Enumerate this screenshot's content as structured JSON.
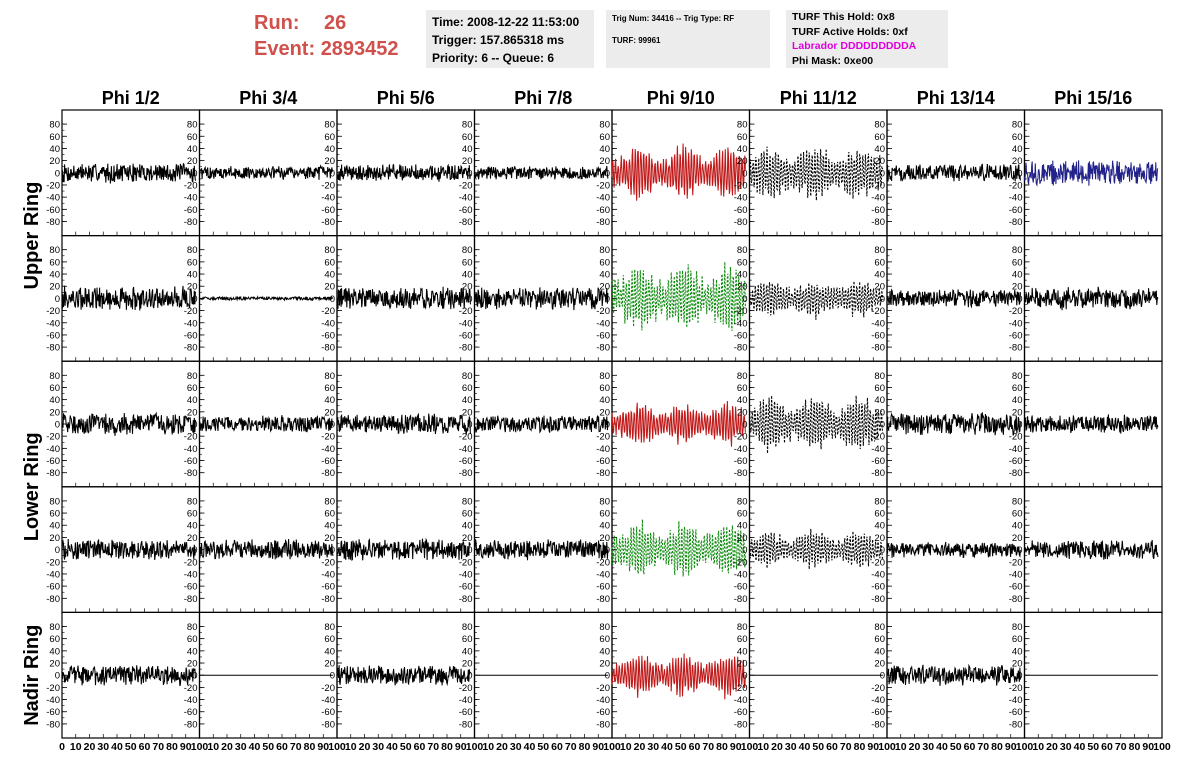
{
  "header": {
    "run_label": "Run:",
    "run_value": "26",
    "event_label": "Event:",
    "event_value": "2893452",
    "accent_color": "#d0504c"
  },
  "info_time": {
    "time": "Time: 2008-12-22 11:53:00",
    "trigger": "Trigger: 157.865318 ms",
    "priority_queue": "Priority: 6 -- Queue: 6"
  },
  "info_trig": {
    "trig_line": "Trig Num: 34416 -- Trig Type: RF",
    "turf_line": "TURF: 99961"
  },
  "info_turf": {
    "this_hold": "TURF This Hold: 0x8",
    "active_holds": "TURF Active Holds: 0xf",
    "labrador": "Labrador DDDDDDDDDA",
    "labrador_color": "#e000e0",
    "phi_mask": "Phi Mask: 0xe00"
  },
  "chart_data": {
    "type": "line",
    "title": "",
    "columns": [
      "Phi 1/2",
      "Phi 3/4",
      "Phi 5/6",
      "Phi 7/8",
      "Phi 9/10",
      "Phi 11/12",
      "Phi 13/14",
      "Phi 15/16"
    ],
    "rings": [
      "Upper Ring",
      "Lower Ring",
      "Nadir Ring"
    ],
    "xlim": [
      0,
      100
    ],
    "ylim": [
      -90,
      90
    ],
    "x_ticks": [
      0,
      10,
      20,
      30,
      40,
      50,
      60,
      70,
      80,
      90,
      100
    ],
    "x_tick_labels": [
      "0",
      "10",
      "20",
      "30",
      "40",
      "50",
      "60",
      "70",
      "80",
      "90",
      "100"
    ],
    "y_ticks": [
      80,
      60,
      40,
      20,
      0,
      -20,
      -40,
      -60,
      -80
    ],
    "y_tick_labels": [
      "80",
      "60",
      "40",
      "20",
      "0",
      "-20",
      "-40",
      "-60",
      "-80"
    ],
    "colors": {
      "black": "#000000",
      "red": "#c01818",
      "green": "#0b8a0b",
      "blue": "#22228a"
    },
    "waveform_x_range": [
      0,
      97
    ],
    "samples_per_trace": 260,
    "rows": [
      [
        {
          "color": "black",
          "dash": false,
          "amplitude": 18,
          "type": "noise"
        },
        {
          "color": "black",
          "dash": false,
          "amplitude": 12,
          "type": "noise"
        },
        {
          "color": "black",
          "dash": false,
          "amplitude": 15,
          "type": "noise"
        },
        {
          "color": "black",
          "dash": false,
          "amplitude": 12,
          "type": "noise"
        },
        {
          "color": "red",
          "dash": false,
          "amplitude": 45,
          "type": "oscillation"
        },
        {
          "color": "black",
          "dash": true,
          "amplitude": 45,
          "type": "oscillation"
        },
        {
          "color": "black",
          "dash": false,
          "amplitude": 15,
          "type": "noise"
        },
        {
          "color": "blue",
          "dash": false,
          "amplitude": 22,
          "type": "noise"
        }
      ],
      [
        {
          "color": "black",
          "dash": false,
          "amplitude": 22,
          "type": "noise"
        },
        {
          "color": "black",
          "dash": false,
          "amplitude": 3,
          "type": "noise"
        },
        {
          "color": "black",
          "dash": false,
          "amplitude": 20,
          "type": "noise"
        },
        {
          "color": "black",
          "dash": false,
          "amplitude": 20,
          "type": "noise"
        },
        {
          "color": "green",
          "dash": true,
          "amplitude": 55,
          "type": "oscillation"
        },
        {
          "color": "black",
          "dash": true,
          "amplitude": 30,
          "type": "oscillation"
        },
        {
          "color": "black",
          "dash": false,
          "amplitude": 16,
          "type": "noise"
        },
        {
          "color": "black",
          "dash": false,
          "amplitude": 20,
          "type": "noise"
        }
      ],
      [
        {
          "color": "black",
          "dash": false,
          "amplitude": 20,
          "type": "noise"
        },
        {
          "color": "black",
          "dash": false,
          "amplitude": 15,
          "type": "noise"
        },
        {
          "color": "black",
          "dash": false,
          "amplitude": 18,
          "type": "noise"
        },
        {
          "color": "black",
          "dash": false,
          "amplitude": 16,
          "type": "noise"
        },
        {
          "color": "red",
          "dash": false,
          "amplitude": 35,
          "type": "oscillation"
        },
        {
          "color": "black",
          "dash": true,
          "amplitude": 45,
          "type": "oscillation"
        },
        {
          "color": "black",
          "dash": false,
          "amplitude": 20,
          "type": "noise"
        },
        {
          "color": "black",
          "dash": false,
          "amplitude": 16,
          "type": "noise"
        }
      ],
      [
        {
          "color": "black",
          "dash": false,
          "amplitude": 18,
          "type": "noise"
        },
        {
          "color": "black",
          "dash": false,
          "amplitude": 18,
          "type": "noise"
        },
        {
          "color": "black",
          "dash": false,
          "amplitude": 20,
          "type": "noise"
        },
        {
          "color": "black",
          "dash": false,
          "amplitude": 18,
          "type": "noise"
        },
        {
          "color": "green",
          "dash": true,
          "amplitude": 45,
          "type": "oscillation"
        },
        {
          "color": "black",
          "dash": true,
          "amplitude": 30,
          "type": "oscillation"
        },
        {
          "color": "black",
          "dash": false,
          "amplitude": 14,
          "type": "noise"
        },
        {
          "color": "black",
          "dash": false,
          "amplitude": 17,
          "type": "noise"
        }
      ],
      [
        {
          "color": "black",
          "dash": false,
          "amplitude": 18,
          "type": "noise"
        },
        {
          "color": "black",
          "dash": false,
          "amplitude": 0,
          "type": "flat"
        },
        {
          "color": "black",
          "dash": false,
          "amplitude": 18,
          "type": "noise"
        },
        {
          "color": "black",
          "dash": false,
          "amplitude": 0,
          "type": "flat"
        },
        {
          "color": "red",
          "dash": false,
          "amplitude": 35,
          "type": "oscillation"
        },
        {
          "color": "black",
          "dash": false,
          "amplitude": 0,
          "type": "flat"
        },
        {
          "color": "black",
          "dash": false,
          "amplitude": 18,
          "type": "noise"
        },
        {
          "color": "black",
          "dash": false,
          "amplitude": 0,
          "type": "flat"
        }
      ]
    ]
  }
}
